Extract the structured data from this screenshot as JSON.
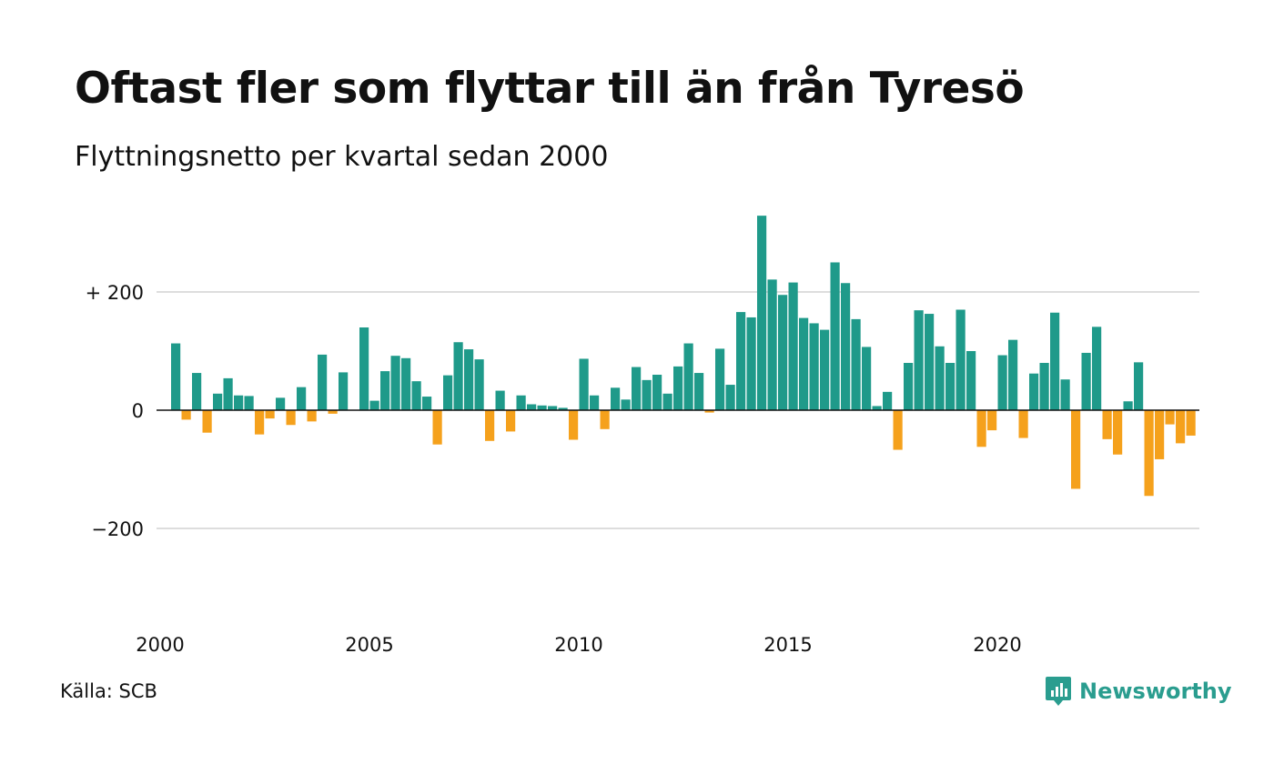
{
  "header": {
    "title": "Oftast fler som flyttar till än från Tyresö",
    "subtitle": "Flyttningsnetto per kvartal sedan 2000"
  },
  "footer": {
    "source": "Källa: SCB",
    "brand": "Newsworthy",
    "brand_icon": "newsworthy-logo-icon"
  },
  "colors": {
    "positive": "#1f9a8a",
    "negative": "#f5a11c",
    "grid": "#dddddd",
    "brand": "#2a9d8f"
  },
  "chart_data": {
    "type": "bar",
    "title": "Oftast fler som flyttar till än från Tyresö",
    "subtitle": "Flyttningsnetto per kvartal sedan 2000",
    "x_start_year": 2000,
    "periods_per_year": 4,
    "ylim": [
      -350,
      330
    ],
    "yticks": [
      {
        "value": 200,
        "label": "+ 200"
      },
      {
        "value": 0,
        "label": "0"
      },
      {
        "value": -200,
        "label": "−200"
      }
    ],
    "xticks": [
      {
        "year": 2000,
        "label": "2000"
      },
      {
        "year": 2005,
        "label": "2005"
      },
      {
        "year": 2010,
        "label": "2010"
      },
      {
        "year": 2015,
        "label": "2015"
      },
      {
        "year": 2020,
        "label": "2020"
      }
    ],
    "grid": true,
    "legend": "none",
    "values": [
      113,
      -16,
      63,
      -38,
      28,
      54,
      25,
      24,
      -41,
      -14,
      21,
      -25,
      39,
      -19,
      94,
      -6,
      64,
      0,
      140,
      16,
      66,
      92,
      88,
      49,
      23,
      -58,
      59,
      115,
      103,
      86,
      -52,
      33,
      -36,
      25,
      10,
      8,
      7,
      4,
      -50,
      87,
      25,
      -32,
      38,
      18,
      73,
      51,
      60,
      28,
      74,
      113,
      63,
      -4,
      104,
      43,
      166,
      157,
      329,
      221,
      195,
      216,
      156,
      147,
      136,
      250,
      215,
      154,
      107,
      7,
      31,
      -67,
      80,
      169,
      163,
      108,
      80,
      170,
      100,
      -62,
      -34,
      93,
      119,
      -47,
      62,
      80,
      165,
      52,
      -133,
      97,
      141,
      -49,
      -75,
      15,
      81,
      -145,
      -83,
      -24,
      -56,
      -43
    ]
  }
}
